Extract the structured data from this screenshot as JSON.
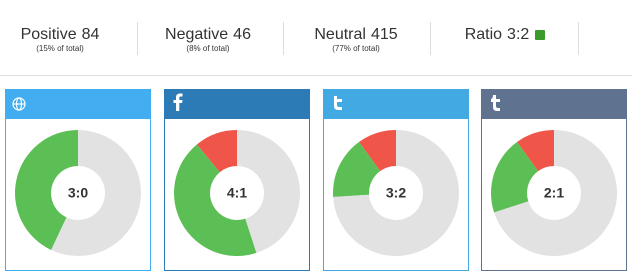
{
  "stats": [
    {
      "label": "Positive",
      "value": 84,
      "note": "(15% of total)"
    },
    {
      "label": "Negative",
      "value": 46,
      "note": "(8% of total)"
    },
    {
      "label": "Neutral",
      "value": 415,
      "note": "(77% of total)"
    },
    {
      "label": "Ratio",
      "value": "3:2"
    }
  ],
  "chart_data": [
    {
      "type": "pie",
      "values": [
        0,
        43,
        57
      ],
      "colors": [
        "#ef5548",
        "#5cbf56",
        "#e2e2e2"
      ],
      "center_label": "3:0",
      "header_color": "#42adf0"
    },
    {
      "type": "pie",
      "values": [
        11,
        44,
        45
      ],
      "colors": [
        "#ef5548",
        "#5cbf56",
        "#e2e2e2"
      ],
      "center_label": "4:1",
      "header_color": "#2d7bb6"
    },
    {
      "type": "pie",
      "values": [
        10,
        16,
        74
      ],
      "colors": [
        "#ef5548",
        "#5cbf56",
        "#e2e2e2"
      ],
      "center_label": "3:2",
      "header_color": "#43a9e3"
    },
    {
      "type": "pie",
      "values": [
        10,
        20,
        70
      ],
      "colors": [
        "#ef5548",
        "#5cbf56",
        "#e2e2e2"
      ],
      "center_label": "2:1",
      "header_color": "#5f7290"
    }
  ]
}
